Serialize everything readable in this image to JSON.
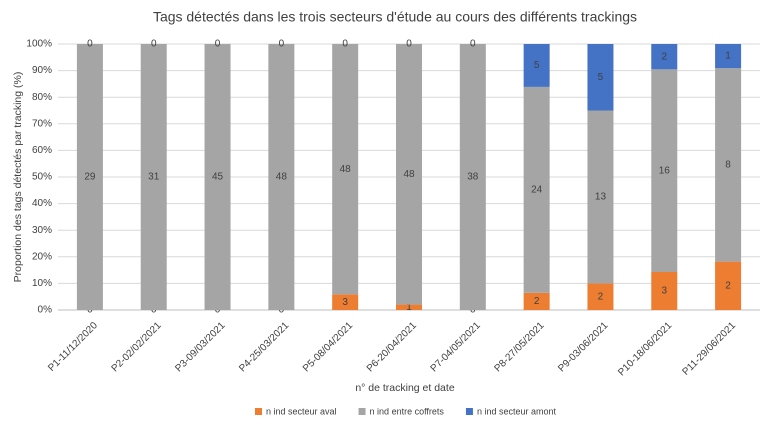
{
  "chart_data": {
    "type": "bar",
    "stacking": "percent",
    "title": "Tags détectés dans les trois secteurs d'étude au cours des différents trackings",
    "x_label": "n° de tracking et date",
    "y_label": "Proportion des tags détectés par tracking (%)",
    "categories": [
      "P1-11/12/2020",
      "P2-02/02/2021",
      "P3-09/03/2021",
      "P4-25/03/2021",
      "P5-08/04/2021",
      "P6-20/04/2021",
      "P7-04/05/2021",
      "P8-27/05/2021",
      "P9-03/06/2021",
      "P10-18/06/2021",
      "P11-29/06/2021"
    ],
    "series": [
      {
        "name": "n ind secteur aval",
        "color": "#ed7d31",
        "values": [
          0,
          0,
          0,
          0,
          3,
          1,
          0,
          2,
          2,
          3,
          2
        ]
      },
      {
        "name": "n ind entre coffrets",
        "color": "#a5a5a5",
        "values": [
          29,
          31,
          45,
          48,
          48,
          48,
          38,
          24,
          13,
          16,
          8
        ]
      },
      {
        "name": "n ind secteur amont",
        "color": "#4472c4",
        "values": [
          0,
          0,
          0,
          0,
          0,
          0,
          0,
          5,
          5,
          2,
          1
        ]
      }
    ],
    "ylim": [
      0,
      100
    ],
    "yticks": [
      {
        "value": 0,
        "label": "0%"
      },
      {
        "value": 10,
        "label": "10%"
      },
      {
        "value": 20,
        "label": "20%"
      },
      {
        "value": 30,
        "label": "30%"
      },
      {
        "value": 40,
        "label": "40%"
      },
      {
        "value": 50,
        "label": "50%"
      },
      {
        "value": 60,
        "label": "60%"
      },
      {
        "value": 70,
        "label": "70%"
      },
      {
        "value": 80,
        "label": "80%"
      },
      {
        "value": 90,
        "label": "90%"
      },
      {
        "value": 100,
        "label": "100%"
      }
    ],
    "grid": true,
    "legend": "bottom"
  }
}
